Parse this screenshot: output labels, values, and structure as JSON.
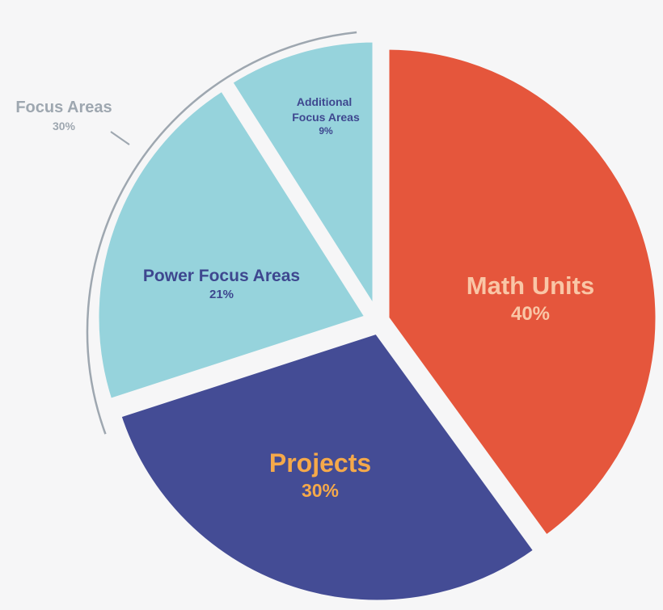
{
  "chart_data": {
    "type": "pie",
    "title": "",
    "slices": [
      {
        "label": "Math Units",
        "value": 40,
        "value_label": "40%",
        "color": "#e5563c",
        "label_color": "#f9c6a6"
      },
      {
        "label": "Projects",
        "value": 30,
        "value_label": "30%",
        "color": "#444c95",
        "label_color": "#f5a94a"
      },
      {
        "label": "Power Focus Areas",
        "value": 21,
        "value_label": "21%",
        "color": "#96d3dc",
        "label_color": "#3e478f"
      },
      {
        "label": "Additional Focus Areas",
        "value": 9,
        "value_label": "9%",
        "color": "#96d3dc",
        "label_color": "#3e478f"
      }
    ],
    "group": {
      "label": "Focus Areas",
      "value": 30,
      "value_label": "30%",
      "members": [
        "Power Focus Areas",
        "Additional Focus Areas"
      ],
      "color": "#9ea7b0"
    },
    "start": "12 o'clock, clockwise",
    "background": "#f6f6f7"
  }
}
